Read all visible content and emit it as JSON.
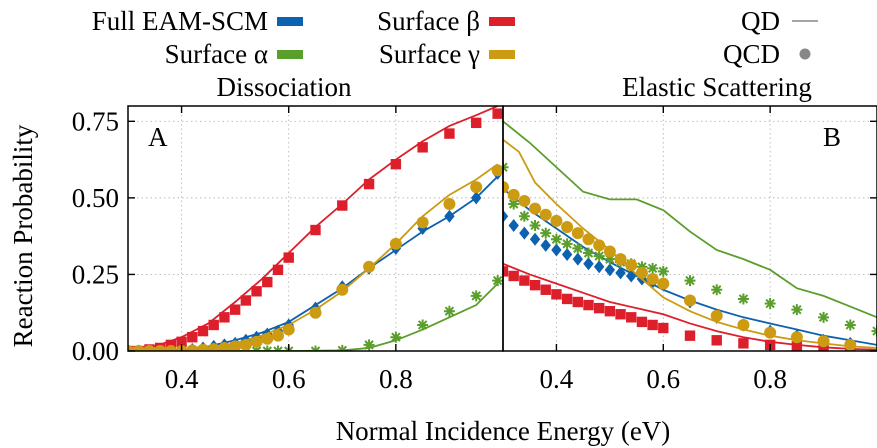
{
  "legend": {
    "items": [
      {
        "label": "Full EAM-SCM",
        "symbol": "bar",
        "color": "#0d62b0"
      },
      {
        "label": "Surface α",
        "symbol": "bar",
        "color": "#5a9e2b"
      },
      {
        "label": "Surface β",
        "symbol": "bar",
        "color": "#dd1f2b"
      },
      {
        "label": "Surface γ",
        "symbol": "bar",
        "color": "#cc9b12"
      },
      {
        "label": "QD",
        "symbol": "line",
        "color": "#888888"
      },
      {
        "label": "QCD",
        "symbol": "dot",
        "color": "#888888"
      }
    ]
  },
  "chart_data": [
    {
      "type": "line",
      "panel_label": "A",
      "title": "Dissociation",
      "xlabel": "Normal Incidence Energy (eV)",
      "ylabel": "Reaction Probability",
      "xlim": [
        0.3,
        1.0
      ],
      "ylim": [
        0.0,
        0.8
      ],
      "xticks": [
        0.4,
        0.6,
        0.8
      ],
      "yticks": [
        0.0,
        0.25,
        0.5,
        0.75
      ],
      "yticklabels": [
        "0.00",
        "0.25",
        "0.50",
        "0.75"
      ],
      "grid": true,
      "series": [
        {
          "name": "Full EAM-SCM",
          "color": "#0d62b0",
          "marker": "diamond",
          "qd": {
            "x": [
              0.3,
              0.4,
              0.45,
              0.5,
              0.55,
              0.6,
              0.65,
              0.7,
              0.75,
              0.8,
              0.85,
              0.9,
              0.95,
              0.99
            ],
            "y": [
              0.0,
              0.005,
              0.015,
              0.035,
              0.06,
              0.095,
              0.15,
              0.205,
              0.27,
              0.33,
              0.39,
              0.44,
              0.5,
              0.57
            ]
          },
          "qcd": {
            "x": [
              0.3,
              0.32,
              0.34,
              0.36,
              0.38,
              0.4,
              0.42,
              0.44,
              0.46,
              0.48,
              0.5,
              0.52,
              0.54,
              0.56,
              0.58,
              0.6,
              0.65,
              0.7,
              0.75,
              0.8,
              0.85,
              0.9,
              0.95,
              0.99
            ],
            "y": [
              0.0,
              0.0,
              0.0,
              0.0,
              0.0,
              0.002,
              0.005,
              0.01,
              0.015,
              0.02,
              0.025,
              0.035,
              0.045,
              0.055,
              0.065,
              0.085,
              0.14,
              0.21,
              0.27,
              0.335,
              0.4,
              0.44,
              0.5,
              0.58
            ]
          }
        },
        {
          "name": "Surface α",
          "color": "#5a9e2b",
          "marker": "star",
          "qd": {
            "x": [
              0.3,
              0.5,
              0.6,
              0.7,
              0.75,
              0.8,
              0.85,
              0.9,
              0.95,
              0.99
            ],
            "y": [
              0.0,
              0.0,
              0.0,
              0.002,
              0.01,
              0.035,
              0.07,
              0.11,
              0.15,
              0.22
            ]
          },
          "qcd": {
            "x": [
              0.3,
              0.32,
              0.34,
              0.36,
              0.38,
              0.4,
              0.42,
              0.44,
              0.46,
              0.48,
              0.5,
              0.52,
              0.54,
              0.56,
              0.58,
              0.6,
              0.65,
              0.7,
              0.75,
              0.8,
              0.85,
              0.9,
              0.95,
              0.99
            ],
            "y": [
              0.0,
              0.0,
              0.0,
              0.0,
              0.0,
              0.0,
              0.0,
              0.0,
              0.0,
              0.0,
              0.0,
              0.0,
              0.0,
              0.0,
              0.0,
              0.0,
              0.0,
              0.002,
              0.02,
              0.045,
              0.085,
              0.13,
              0.18,
              0.23
            ]
          }
        },
        {
          "name": "Surface β",
          "color": "#dd1f2b",
          "marker": "square",
          "qd": {
            "x": [
              0.3,
              0.35,
              0.4,
              0.45,
              0.5,
              0.55,
              0.6,
              0.65,
              0.7,
              0.75,
              0.8,
              0.85,
              0.9,
              0.95,
              0.99
            ],
            "y": [
              0.0,
              0.015,
              0.045,
              0.09,
              0.16,
              0.235,
              0.32,
              0.405,
              0.48,
              0.56,
              0.625,
              0.685,
              0.735,
              0.77,
              0.8
            ]
          },
          "qcd": {
            "x": [
              0.3,
              0.32,
              0.34,
              0.36,
              0.38,
              0.4,
              0.42,
              0.44,
              0.46,
              0.48,
              0.5,
              0.52,
              0.54,
              0.56,
              0.58,
              0.6,
              0.65,
              0.7,
              0.75,
              0.8,
              0.85,
              0.9,
              0.95,
              0.99
            ],
            "y": [
              0.0,
              0.0,
              0.005,
              0.01,
              0.02,
              0.03,
              0.045,
              0.065,
              0.085,
              0.11,
              0.135,
              0.165,
              0.195,
              0.225,
              0.265,
              0.305,
              0.395,
              0.475,
              0.545,
              0.61,
              0.665,
              0.71,
              0.745,
              0.775
            ]
          }
        },
        {
          "name": "Surface γ",
          "color": "#cc9b12",
          "marker": "circle",
          "qd": {
            "x": [
              0.3,
              0.4,
              0.45,
              0.5,
              0.55,
              0.6,
              0.65,
              0.7,
              0.75,
              0.8,
              0.85,
              0.9,
              0.95,
              0.99
            ],
            "y": [
              0.0,
              0.003,
              0.01,
              0.025,
              0.05,
              0.085,
              0.135,
              0.195,
              0.27,
              0.35,
              0.44,
              0.51,
              0.56,
              0.61
            ]
          },
          "qcd": {
            "x": [
              0.3,
              0.32,
              0.34,
              0.36,
              0.38,
              0.4,
              0.42,
              0.44,
              0.46,
              0.48,
              0.5,
              0.52,
              0.54,
              0.56,
              0.58,
              0.6,
              0.65,
              0.7,
              0.75,
              0.8,
              0.85,
              0.9,
              0.95,
              0.99
            ],
            "y": [
              0.0,
              0.0,
              0.0,
              0.0,
              0.0,
              0.0,
              0.002,
              0.004,
              0.006,
              0.01,
              0.015,
              0.02,
              0.03,
              0.04,
              0.05,
              0.07,
              0.125,
              0.2,
              0.275,
              0.35,
              0.42,
              0.48,
              0.535,
              0.59
            ]
          }
        }
      ]
    },
    {
      "type": "line",
      "panel_label": "B",
      "title": "Elastic Scattering",
      "xlabel": "Normal Incidence Energy (eV)",
      "xlim": [
        0.3,
        1.0
      ],
      "ylim": [
        0.0,
        0.8
      ],
      "xticks": [
        0.4,
        0.6,
        0.8
      ],
      "grid": true,
      "series": [
        {
          "name": "Full EAM-SCM",
          "color": "#0d62b0",
          "marker": "diamond",
          "qd": {
            "x": [
              0.3,
              0.35,
              0.4,
              0.45,
              0.5,
              0.55,
              0.6,
              0.65,
              0.7,
              0.75,
              0.8,
              0.85,
              0.9,
              0.95,
              1.0
            ],
            "y": [
              0.53,
              0.46,
              0.4,
              0.34,
              0.29,
              0.245,
              0.2,
              0.165,
              0.135,
              0.11,
              0.09,
              0.07,
              0.05,
              0.035,
              0.02
            ]
          },
          "qcd": {
            "x": [
              0.3,
              0.32,
              0.34,
              0.36,
              0.38,
              0.4,
              0.42,
              0.44,
              0.46,
              0.48,
              0.5,
              0.52,
              0.54,
              0.56,
              0.58,
              0.6,
              0.65,
              0.7,
              0.75,
              0.8,
              0.85,
              0.9,
              0.95
            ],
            "y": [
              0.44,
              0.41,
              0.385,
              0.365,
              0.345,
              0.33,
              0.315,
              0.3,
              0.285,
              0.275,
              0.265,
              0.255,
              0.245,
              0.235,
              0.225,
              0.22,
              0.16,
              0.11,
              0.085,
              0.065,
              0.05,
              0.035,
              0.025
            ]
          }
        },
        {
          "name": "Surface α",
          "color": "#5a9e2b",
          "marker": "star",
          "qd": {
            "x": [
              0.3,
              0.35,
              0.4,
              0.45,
              0.5,
              0.55,
              0.6,
              0.65,
              0.7,
              0.75,
              0.8,
              0.85,
              0.9,
              0.95,
              1.0
            ],
            "y": [
              0.75,
              0.68,
              0.6,
              0.52,
              0.495,
              0.495,
              0.46,
              0.39,
              0.33,
              0.3,
              0.265,
              0.205,
              0.18,
              0.145,
              0.11
            ]
          },
          "qcd": {
            "x": [
              0.3,
              0.32,
              0.34,
              0.36,
              0.38,
              0.4,
              0.42,
              0.44,
              0.46,
              0.48,
              0.5,
              0.52,
              0.54,
              0.56,
              0.58,
              0.6,
              0.65,
              0.7,
              0.75,
              0.8,
              0.85,
              0.9,
              0.95,
              1.0
            ],
            "y": [
              0.6,
              0.48,
              0.44,
              0.41,
              0.385,
              0.365,
              0.35,
              0.335,
              0.32,
              0.31,
              0.3,
              0.29,
              0.285,
              0.275,
              0.27,
              0.26,
              0.23,
              0.2,
              0.17,
              0.155,
              0.135,
              0.11,
              0.085,
              0.065
            ]
          }
        },
        {
          "name": "Surface β",
          "color": "#dd1f2b",
          "marker": "square",
          "qd": {
            "x": [
              0.3,
              0.35,
              0.4,
              0.45,
              0.5,
              0.55,
              0.6,
              0.65,
              0.7,
              0.75,
              0.8,
              0.85,
              0.9,
              0.95,
              1.0
            ],
            "y": [
              0.285,
              0.25,
              0.22,
              0.19,
              0.16,
              0.14,
              0.12,
              0.09,
              0.065,
              0.045,
              0.03,
              0.02,
              0.012,
              0.007,
              0.004
            ]
          },
          "qcd": {
            "x": [
              0.3,
              0.32,
              0.34,
              0.36,
              0.38,
              0.4,
              0.42,
              0.44,
              0.46,
              0.48,
              0.5,
              0.52,
              0.54,
              0.56,
              0.58,
              0.6,
              0.65,
              0.7,
              0.75,
              0.8,
              0.85,
              0.9,
              0.95
            ],
            "y": [
              0.26,
              0.245,
              0.23,
              0.215,
              0.2,
              0.185,
              0.17,
              0.16,
              0.15,
              0.14,
              0.13,
              0.12,
              0.11,
              0.095,
              0.085,
              0.075,
              0.05,
              0.035,
              0.025,
              0.02,
              0.015,
              0.01,
              0.008
            ]
          }
        },
        {
          "name": "Surface γ",
          "color": "#cc9b12",
          "marker": "circle",
          "qd": {
            "x": [
              0.3,
              0.33,
              0.36,
              0.4,
              0.45,
              0.5,
              0.55,
              0.6,
              0.65,
              0.7,
              0.75,
              0.8,
              0.85,
              0.9,
              0.95,
              1.0
            ],
            "y": [
              0.69,
              0.65,
              0.55,
              0.48,
              0.4,
              0.33,
              0.25,
              0.175,
              0.13,
              0.095,
              0.07,
              0.05,
              0.035,
              0.025,
              0.015,
              0.01
            ]
          },
          "qcd": {
            "x": [
              0.3,
              0.32,
              0.34,
              0.36,
              0.38,
              0.4,
              0.42,
              0.44,
              0.46,
              0.48,
              0.5,
              0.52,
              0.54,
              0.56,
              0.58,
              0.6,
              0.65,
              0.7,
              0.75,
              0.8,
              0.85,
              0.9,
              0.95
            ],
            "y": [
              0.535,
              0.51,
              0.49,
              0.465,
              0.445,
              0.425,
              0.405,
              0.385,
              0.365,
              0.345,
              0.325,
              0.3,
              0.28,
              0.255,
              0.235,
              0.22,
              0.165,
              0.115,
              0.085,
              0.06,
              0.045,
              0.032,
              0.02
            ]
          }
        }
      ]
    }
  ]
}
